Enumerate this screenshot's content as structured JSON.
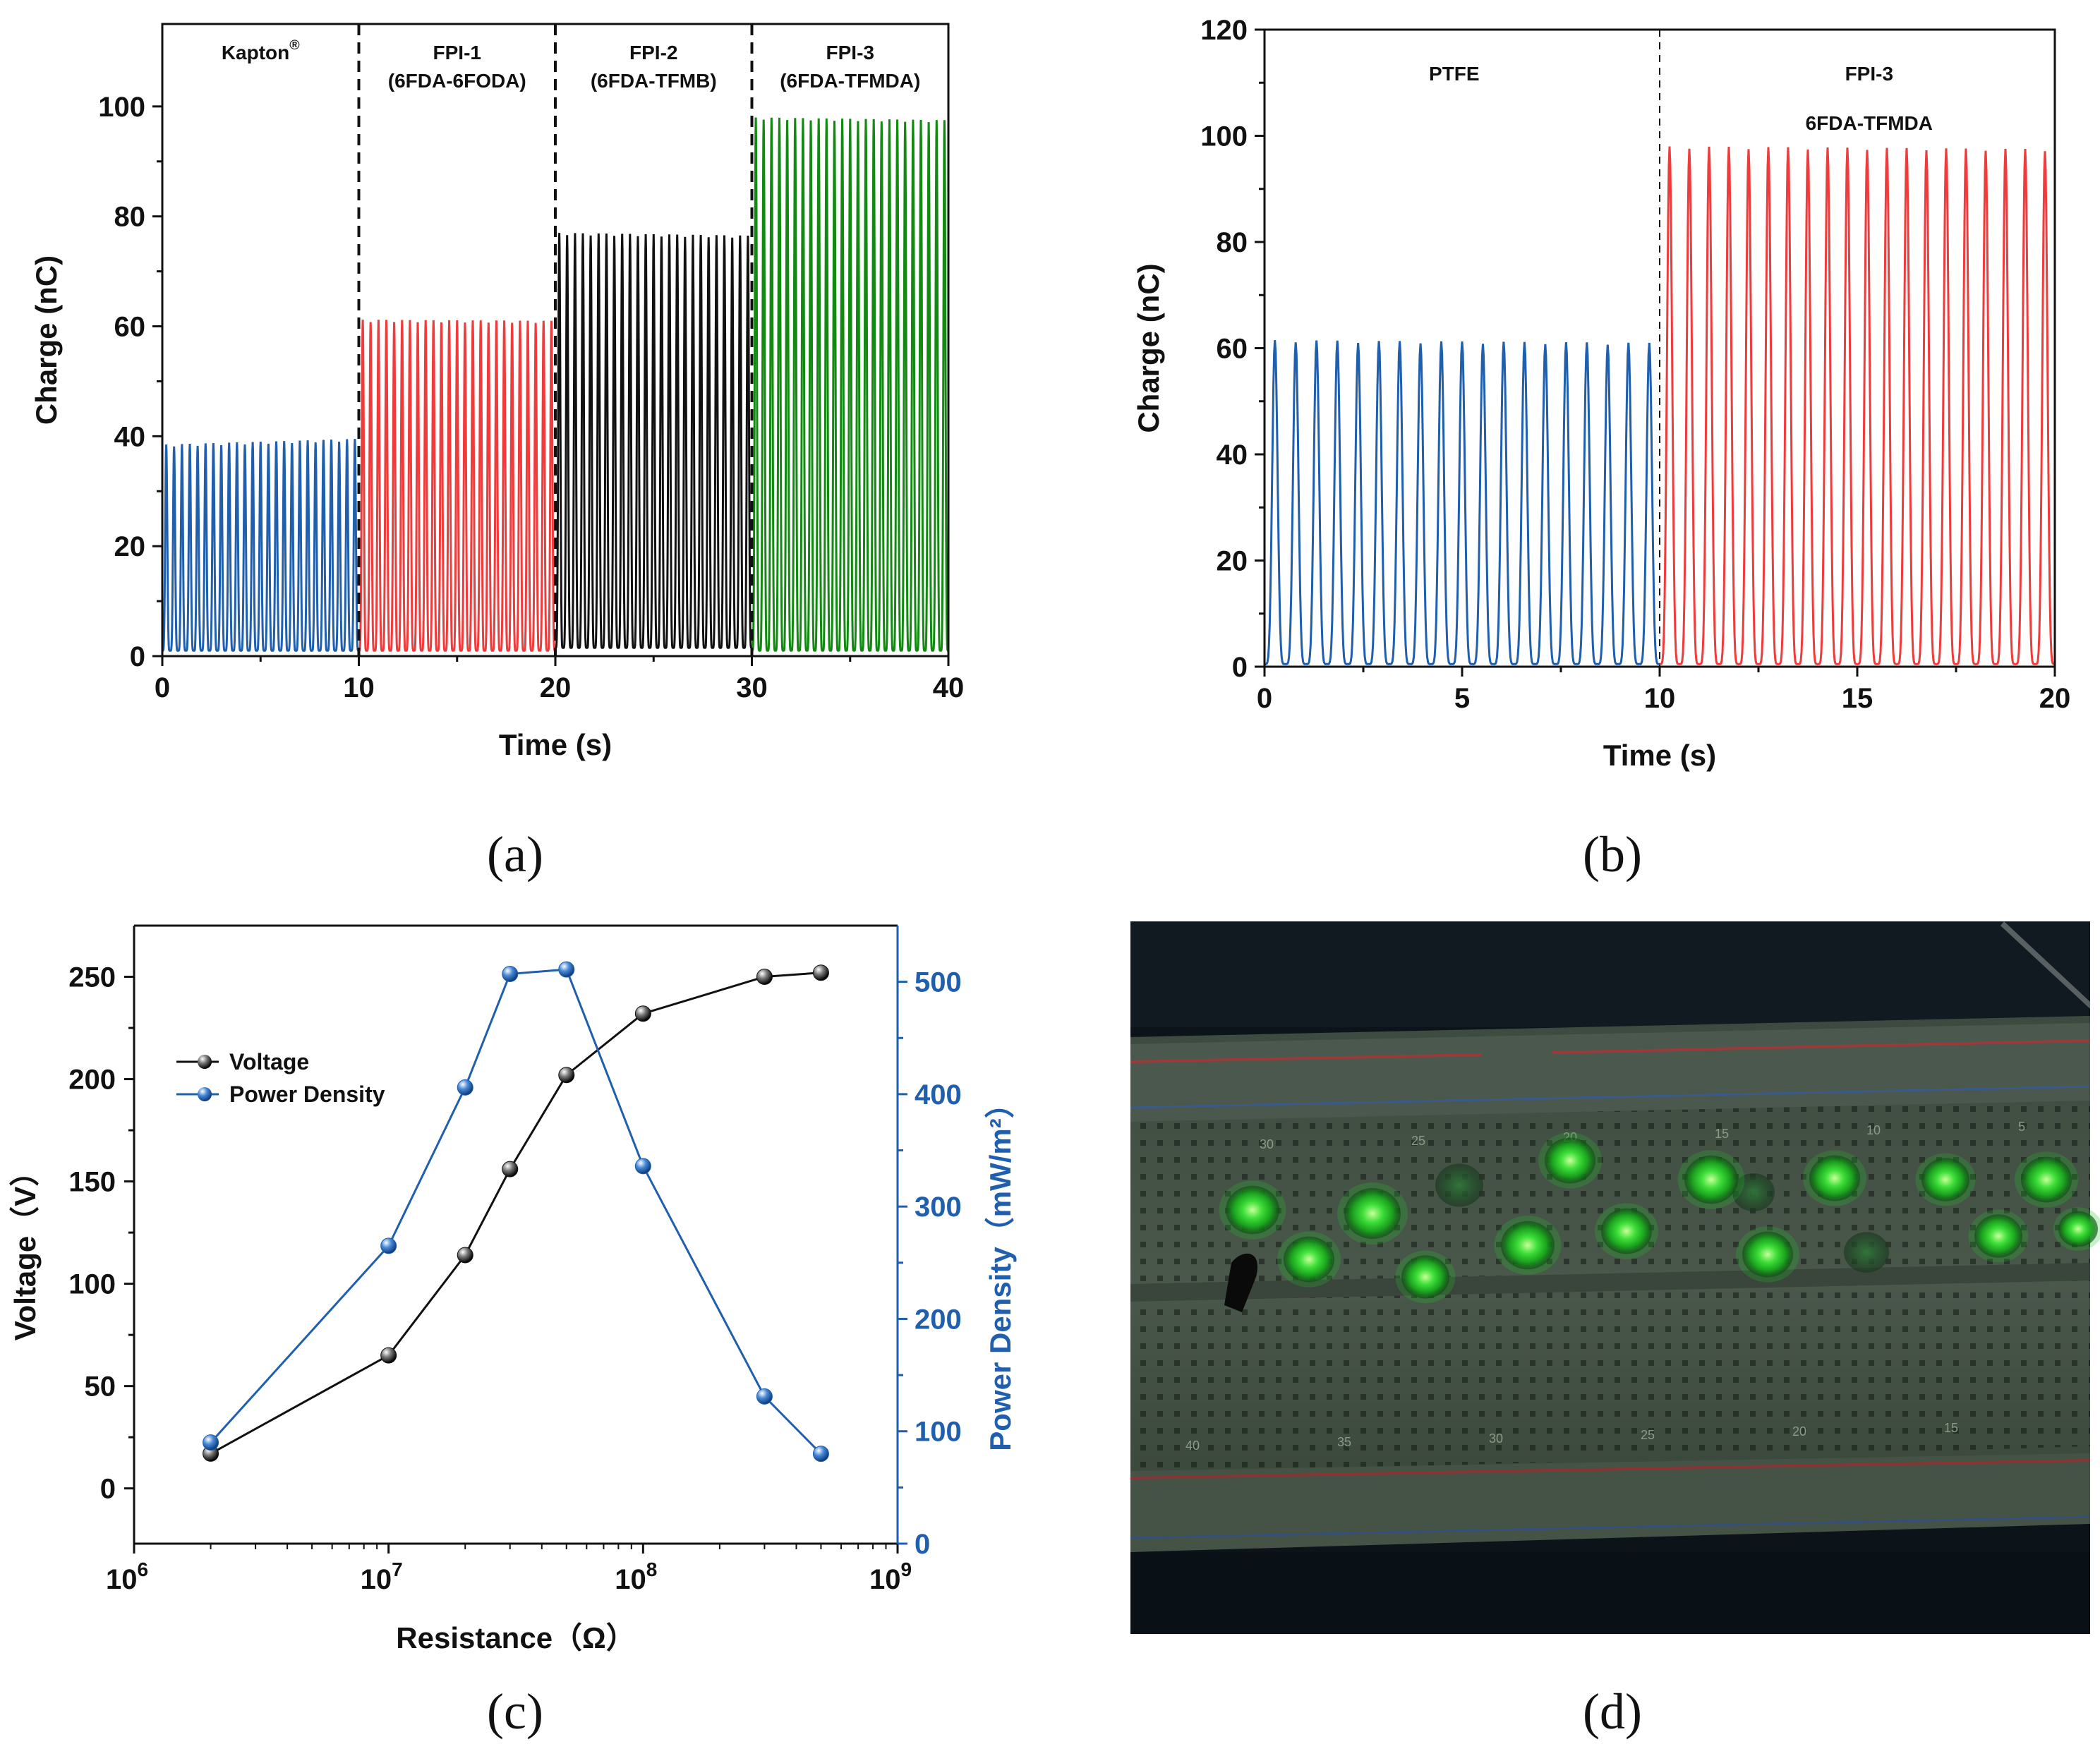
{
  "panels": {
    "a": {
      "label": "(a)"
    },
    "b": {
      "label": "(b)"
    },
    "c": {
      "label": "(c)"
    },
    "d": {
      "label": "(d)"
    }
  },
  "colors": {
    "blue": "#1f5fae",
    "red": "#ef3b3b",
    "black": "#111111",
    "green": "#128a12",
    "voltage": "#111111",
    "power": "#1f5fae"
  },
  "chart_data": [
    {
      "id": "a",
      "type": "line",
      "xlabel": "Time (s)",
      "ylabel": "Charge (nC)",
      "xlim": [
        0,
        40
      ],
      "ylim": [
        0,
        115
      ],
      "xticks": [
        0,
        10,
        20,
        30,
        40
      ],
      "yticks": [
        0,
        20,
        40,
        60,
        80,
        100
      ],
      "dividers": [
        10,
        20,
        30
      ],
      "regions": [
        {
          "name": "Kapton",
          "superscript": "®",
          "line2": "",
          "x_center": 5
        },
        {
          "name": "FPI-1",
          "line2": "(6FDA-6FODA)",
          "x_center": 15
        },
        {
          "name": "FPI-2",
          "line2": "(6FDA-TFMB)",
          "x_center": 25
        },
        {
          "name": "FPI-3",
          "line2": "(6FDA-TFMDA)",
          "x_center": 35
        }
      ],
      "series": [
        {
          "name": "Kapton",
          "color": "blue",
          "x_start": 0,
          "x_end": 10,
          "cycles": 25,
          "base": 1,
          "peak_start": 38.5,
          "peak_end": 39.5
        },
        {
          "name": "FPI-1",
          "color": "red",
          "x_start": 10,
          "x_end": 20,
          "cycles": 25,
          "base": 1,
          "peak_start": 61.2,
          "peak_end": 61
        },
        {
          "name": "FPI-2",
          "color": "black",
          "x_start": 20,
          "x_end": 30,
          "cycles": 25,
          "base": 1.5,
          "peak_start": 77,
          "peak_end": 76.5
        },
        {
          "name": "FPI-3",
          "color": "green",
          "x_start": 30,
          "x_end": 40,
          "cycles": 25,
          "base": 1,
          "peak_start": 98,
          "peak_end": 97.5
        }
      ]
    },
    {
      "id": "b",
      "type": "line",
      "xlabel": "Time (s)",
      "ylabel": "Charge (nC)",
      "xlim": [
        0,
        20
      ],
      "ylim": [
        0,
        120
      ],
      "xticks": [
        0,
        5,
        10,
        15,
        20
      ],
      "yticks": [
        0,
        20,
        40,
        60,
        80,
        100,
        120
      ],
      "dividers": [
        10
      ],
      "regions": [
        {
          "name": "PTFE",
          "line2": "",
          "x_center": 4.8
        },
        {
          "name": "FPI-3",
          "line2": "6FDA-TFMDA",
          "x_center": 15.3
        }
      ],
      "series": [
        {
          "name": "PTFE",
          "color": "blue",
          "x_start": 0,
          "x_end": 10,
          "cycles": 19,
          "base": 0.5,
          "peak_start": 61.5,
          "peak_end": 61
        },
        {
          "name": "FPI-3 6FDA-TFMDA",
          "color": "red",
          "x_start": 10,
          "x_end": 20,
          "cycles": 20,
          "base": 0.5,
          "peak_start": 98,
          "peak_end": 97.5
        }
      ]
    },
    {
      "id": "c",
      "type": "scatter",
      "xlabel": "Resistance（Ω）",
      "ylabel": "Voltage（V）",
      "ylabel2": "Power Density（mW/m²）",
      "xscale": "log",
      "xlim": [
        1000000,
        1000000000
      ],
      "xticks": [
        {
          "base": "10",
          "exp": "6"
        },
        {
          "base": "10",
          "exp": "7"
        },
        {
          "base": "10",
          "exp": "8"
        },
        {
          "base": "10",
          "exp": "9"
        }
      ],
      "ylim": [
        -27,
        275
      ],
      "yticks": [
        0,
        50,
        100,
        150,
        200,
        250
      ],
      "y2lim": [
        0,
        550
      ],
      "y2ticks": [
        0,
        100,
        200,
        300,
        400,
        500
      ],
      "legend": [
        {
          "name": "Voltage",
          "color": "voltage"
        },
        {
          "name": "Power Density",
          "color": "power"
        }
      ],
      "x": [
        2000000,
        10000000,
        20000000,
        30000000,
        50000000,
        100000000,
        300000000,
        500000000
      ],
      "series": [
        {
          "name": "Voltage",
          "axis": "left",
          "color": "voltage",
          "values": [
            17,
            65,
            114,
            156,
            202,
            232,
            250,
            252
          ]
        },
        {
          "name": "Power Density",
          "axis": "right",
          "color": "power",
          "values": [
            90,
            265,
            406,
            507,
            511,
            336,
            131,
            80
          ]
        }
      ]
    }
  ],
  "photo": {
    "description_hidden": "",
    "breadboard_numbers": [
      "30",
      "25",
      "20",
      "15",
      "10",
      "5",
      "40",
      "35",
      "30",
      "25",
      "20",
      "15"
    ]
  }
}
